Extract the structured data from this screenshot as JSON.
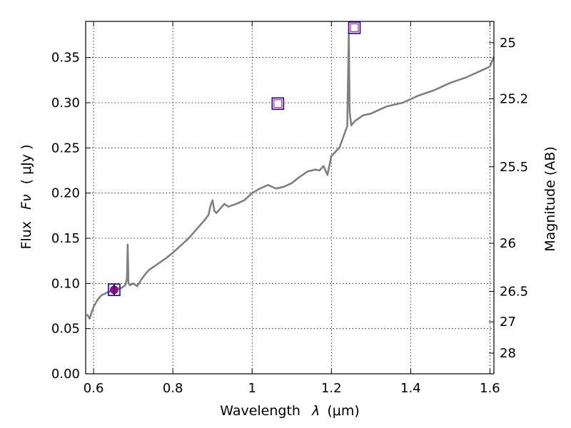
{
  "chart_data": {
    "type": "line",
    "xlabel_prefix": "Wavelength",
    "xlabel_symbol": "λ",
    "xlabel_unit": "(μm)",
    "ylabel_prefix": "Flux",
    "ylabel_symbol": "Fν",
    "ylabel_unit": "( μJy )",
    "y2label": "Magnitude (AB)",
    "xlim": [
      0.58,
      1.61
    ],
    "ylim": [
      0.0,
      0.39
    ],
    "grid": true,
    "x_ticks": [
      {
        "value": 0.6,
        "label": "0.6"
      },
      {
        "value": 0.8,
        "label": "0.8"
      },
      {
        "value": 1.0,
        "label": "1"
      },
      {
        "value": 1.2,
        "label": "1.2"
      },
      {
        "value": 1.4,
        "label": "1.4"
      },
      {
        "value": 1.6,
        "label": "1.6"
      }
    ],
    "y_ticks": [
      {
        "value": 0.0,
        "label": "0.00"
      },
      {
        "value": 0.05,
        "label": "0.05"
      },
      {
        "value": 0.1,
        "label": "0.10"
      },
      {
        "value": 0.15,
        "label": "0.15"
      },
      {
        "value": 0.2,
        "label": "0.20"
      },
      {
        "value": 0.25,
        "label": "0.25"
      },
      {
        "value": 0.3,
        "label": "0.30"
      },
      {
        "value": 0.35,
        "label": "0.35"
      }
    ],
    "y2_ticks": [
      {
        "flux": 0.3665,
        "label": "25"
      },
      {
        "flux": 0.3044,
        "label": "25.2"
      },
      {
        "flux": 0.2291,
        "label": "25.5"
      },
      {
        "flux": 0.1445,
        "label": "26"
      },
      {
        "flux": 0.0912,
        "label": "26.5"
      },
      {
        "flux": 0.0575,
        "label": "27"
      },
      {
        "flux": 0.0229,
        "label": "28"
      }
    ],
    "series": [
      {
        "color": "#808080",
        "x": [
          0.583,
          0.59,
          0.595,
          0.6,
          0.61,
          0.62,
          0.63,
          0.64,
          0.65,
          0.66,
          0.67,
          0.68,
          0.684,
          0.686,
          0.688,
          0.692,
          0.7,
          0.71,
          0.72,
          0.73,
          0.74,
          0.76,
          0.78,
          0.8,
          0.82,
          0.84,
          0.86,
          0.88,
          0.89,
          0.895,
          0.9,
          0.905,
          0.91,
          0.92,
          0.93,
          0.94,
          0.96,
          0.98,
          1.0,
          1.02,
          1.04,
          1.06,
          1.08,
          1.1,
          1.12,
          1.14,
          1.16,
          1.17,
          1.18,
          1.19,
          1.2,
          1.22,
          1.23,
          1.24,
          1.244,
          1.246,
          1.25,
          1.26,
          1.28,
          1.3,
          1.32,
          1.34,
          1.36,
          1.38,
          1.4,
          1.42,
          1.44,
          1.46,
          1.48,
          1.5,
          1.52,
          1.54,
          1.56,
          1.58,
          1.6,
          1.61
        ],
        "y": [
          0.066,
          0.061,
          0.068,
          0.074,
          0.082,
          0.087,
          0.089,
          0.091,
          0.092,
          0.094,
          0.095,
          0.098,
          0.105,
          0.143,
          0.1,
          0.098,
          0.1,
          0.097,
          0.104,
          0.11,
          0.115,
          0.121,
          0.127,
          0.134,
          0.142,
          0.15,
          0.16,
          0.17,
          0.176,
          0.186,
          0.192,
          0.18,
          0.178,
          0.183,
          0.188,
          0.185,
          0.188,
          0.192,
          0.2,
          0.205,
          0.209,
          0.205,
          0.207,
          0.211,
          0.218,
          0.224,
          0.226,
          0.225,
          0.23,
          0.22,
          0.241,
          0.25,
          0.262,
          0.274,
          0.377,
          0.29,
          0.275,
          0.28,
          0.286,
          0.288,
          0.292,
          0.296,
          0.298,
          0.3,
          0.304,
          0.308,
          0.311,
          0.314,
          0.318,
          0.322,
          0.325,
          0.328,
          0.332,
          0.336,
          0.34,
          0.351
        ]
      }
    ],
    "photometry": [
      {
        "x": 0.652,
        "y": 0.093,
        "marker": "square",
        "edge": "#0000ff",
        "face": "#a000a0",
        "error": 0.006
      },
      {
        "x": 1.065,
        "y": 0.299,
        "marker": "square",
        "edge": "#0000ff",
        "inner_edge": "#ff0000",
        "face": "#ffffff"
      },
      {
        "x": 1.258,
        "y": 0.383,
        "marker": "square",
        "edge": "#0000ff",
        "inner_edge": "#ff0000",
        "face": "#ffffff"
      }
    ]
  }
}
